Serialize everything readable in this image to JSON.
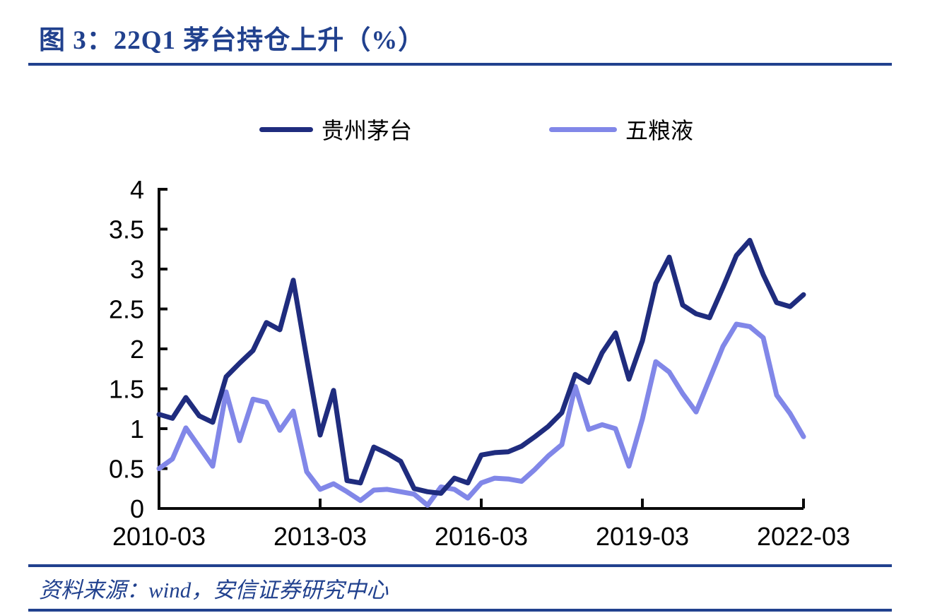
{
  "title": "图 3：22Q1 茅台持仓上升（%）",
  "source": "资料来源：wind，安信证券研究中心",
  "legend": [
    {
      "label": "贵州茅台",
      "color": "#1F2C7E"
    },
    {
      "label": "五粮液",
      "color": "#8187E8"
    }
  ],
  "colors": {
    "accent_blue": "#21418E",
    "axis_black": "#0a0a0a",
    "moutai_line": "#1F2C7E",
    "wuliangye_line": "#8187E8"
  },
  "chart_data": {
    "type": "line",
    "title": "图 3：22Q1 茅台持仓上升（%）",
    "xlabel": "",
    "ylabel": "",
    "ylim": [
      0,
      4
    ],
    "grid": false,
    "legend_position": "top",
    "y_ticks": [
      0,
      0.5,
      1,
      1.5,
      2,
      2.5,
      3,
      3.5,
      4
    ],
    "y_tick_labels": [
      "0",
      "0.5",
      "1",
      "1.5",
      "2",
      "2.5",
      "3",
      "3.5",
      "4"
    ],
    "x_tick_every": 12,
    "x_tick_labels": [
      "2010-03",
      "2013-03",
      "2016-03",
      "2019-03",
      "2022-03"
    ],
    "x": [
      "2010-03",
      "2010-06",
      "2010-09",
      "2010-12",
      "2011-03",
      "2011-06",
      "2011-09",
      "2011-12",
      "2012-03",
      "2012-06",
      "2012-09",
      "2012-12",
      "2013-03",
      "2013-06",
      "2013-09",
      "2013-12",
      "2014-03",
      "2014-06",
      "2014-09",
      "2014-12",
      "2015-03",
      "2015-06",
      "2015-09",
      "2015-12",
      "2016-03",
      "2016-06",
      "2016-09",
      "2016-12",
      "2017-03",
      "2017-06",
      "2017-09",
      "2017-12",
      "2018-03",
      "2018-06",
      "2018-09",
      "2018-12",
      "2019-03",
      "2019-06",
      "2019-09",
      "2019-12",
      "2020-03",
      "2020-06",
      "2020-09",
      "2020-12",
      "2021-03",
      "2021-06",
      "2021-09",
      "2021-12",
      "2022-03"
    ],
    "series": [
      {
        "name": "贵州茅台",
        "color": "#1F2C7E",
        "values": [
          1.18,
          1.13,
          1.39,
          1.16,
          1.08,
          1.65,
          1.82,
          1.98,
          2.33,
          2.24,
          2.86,
          1.88,
          0.92,
          1.48,
          0.35,
          0.32,
          0.77,
          0.69,
          0.59,
          0.25,
          0.21,
          0.19,
          0.38,
          0.32,
          0.67,
          0.7,
          0.71,
          0.78,
          0.9,
          1.03,
          1.2,
          1.68,
          1.58,
          1.95,
          2.2,
          1.62,
          2.1,
          2.82,
          3.15,
          2.55,
          2.44,
          2.39,
          2.77,
          3.17,
          3.36,
          2.93,
          2.58,
          2.53,
          2.68
        ]
      },
      {
        "name": "五粮液",
        "color": "#8187E8",
        "values": [
          0.5,
          0.62,
          1.01,
          0.77,
          0.53,
          1.46,
          0.85,
          1.37,
          1.33,
          0.98,
          1.22,
          0.46,
          0.24,
          0.31,
          0.21,
          0.1,
          0.23,
          0.24,
          0.21,
          0.18,
          0.04,
          0.27,
          0.24,
          0.13,
          0.32,
          0.38,
          0.37,
          0.34,
          0.49,
          0.66,
          0.8,
          1.53,
          0.99,
          1.05,
          1.0,
          0.53,
          1.12,
          1.84,
          1.71,
          1.44,
          1.21,
          1.62,
          2.03,
          2.31,
          2.28,
          2.14,
          1.42,
          1.19,
          0.9
        ]
      }
    ]
  }
}
